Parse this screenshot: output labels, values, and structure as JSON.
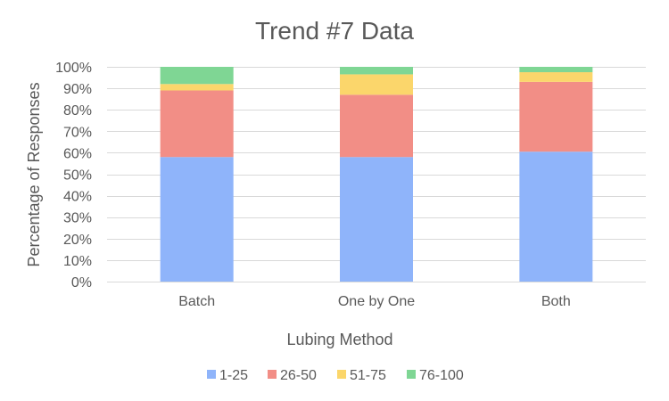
{
  "chart_data": {
    "type": "bar",
    "stacked": true,
    "percent_stacked": true,
    "title": "Trend #7 Data",
    "xlabel": "Lubing Method",
    "ylabel": "Percentage of Responses",
    "categories": [
      "Batch",
      "One by One",
      "Both"
    ],
    "ylim": [
      0,
      1
    ],
    "yticks": [
      0,
      0.1,
      0.2,
      0.3,
      0.4,
      0.5,
      0.6,
      0.7,
      0.8,
      0.9,
      1.0
    ],
    "ytick_labels": [
      "0%",
      "10%",
      "20%",
      "30%",
      "40%",
      "50%",
      "60%",
      "70%",
      "80%",
      "90%",
      "100%"
    ],
    "grid": true,
    "legend_position": "bottom",
    "series": [
      {
        "name": "1-25",
        "color": "#8fb4fa",
        "values": [
          0.58,
          0.58,
          0.605
        ]
      },
      {
        "name": "26-50",
        "color": "#f28e86",
        "values": [
          0.31,
          0.29,
          0.325
        ]
      },
      {
        "name": "51-75",
        "color": "#fbd66b",
        "values": [
          0.03,
          0.095,
          0.045
        ]
      },
      {
        "name": "76-100",
        "color": "#7fd694",
        "values": [
          0.08,
          0.035,
          0.025
        ]
      }
    ]
  }
}
